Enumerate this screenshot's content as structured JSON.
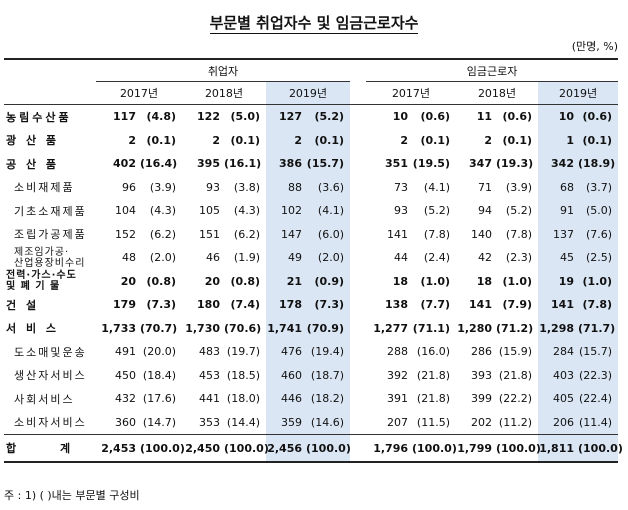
{
  "title": "부문별 취업자수 및 임금근로자수",
  "unit": "(만명, %)",
  "groups": {
    "employed": "취업자",
    "wage": "임금근로자"
  },
  "years": [
    "2017년",
    "2018년",
    "2019년",
    "2017년",
    "2018년",
    "2019년"
  ],
  "rows": [
    {
      "label": "농림수산품",
      "sub": false,
      "bold": true,
      "vals": [
        "117",
        "(4.8)",
        "122",
        "(5.0)",
        "127",
        "(5.2)",
        "10",
        "(0.6)",
        "11",
        "(0.6)",
        "10",
        "(0.6)"
      ]
    },
    {
      "label": "광 산 품",
      "sub": false,
      "bold": true,
      "vals": [
        "2",
        "(0.1)",
        "2",
        "(0.1)",
        "2",
        "(0.1)",
        "2",
        "(0.1)",
        "2",
        "(0.1)",
        "1",
        "(0.1)"
      ]
    },
    {
      "label": "공 산 품",
      "sub": false,
      "bold": true,
      "vals": [
        "402",
        "(16.4)",
        "395",
        "(16.1)",
        "386",
        "(15.7)",
        "351",
        "(19.5)",
        "347",
        "(19.3)",
        "342",
        "(18.9)"
      ]
    },
    {
      "label": "소비재제품",
      "sub": true,
      "bold": false,
      "vals": [
        "96",
        "(3.9)",
        "93",
        "(3.8)",
        "88",
        "(3.6)",
        "73",
        "(4.1)",
        "71",
        "(3.9)",
        "68",
        "(3.7)"
      ]
    },
    {
      "label": "기초소재제품",
      "sub": true,
      "bold": false,
      "vals": [
        "104",
        "(4.3)",
        "105",
        "(4.3)",
        "102",
        "(4.1)",
        "93",
        "(5.2)",
        "94",
        "(5.2)",
        "91",
        "(5.0)"
      ]
    },
    {
      "label": "조립가공제품",
      "sub": true,
      "bold": false,
      "vals": [
        "152",
        "(6.2)",
        "151",
        "(6.2)",
        "147",
        "(6.0)",
        "141",
        "(7.8)",
        "140",
        "(7.8)",
        "137",
        "(7.6)"
      ]
    },
    {
      "label": "제조임가공·산업용장비수리",
      "sub": true,
      "bold": false,
      "two": true,
      "l1": "제조임가공·",
      "l2": "산업용장비수리",
      "vals": [
        "48",
        "(2.0)",
        "46",
        "(1.9)",
        "49",
        "(2.0)",
        "44",
        "(2.4)",
        "42",
        "(2.3)",
        "45",
        "(2.5)"
      ]
    },
    {
      "label": "전력·가스·수도및폐기물",
      "sub": false,
      "bold": true,
      "two": true,
      "l1": "전력·가스·수도",
      "l2": "및 폐 기 물",
      "vals": [
        "20",
        "(0.8)",
        "20",
        "(0.8)",
        "21",
        "(0.9)",
        "18",
        "(1.0)",
        "18",
        "(1.0)",
        "19",
        "(1.0)"
      ]
    },
    {
      "label": "건 설",
      "sub": false,
      "bold": true,
      "vals": [
        "179",
        "(7.3)",
        "180",
        "(7.4)",
        "178",
        "(7.3)",
        "138",
        "(7.7)",
        "141",
        "(7.9)",
        "141",
        "(7.8)"
      ]
    },
    {
      "label": "서 비 스",
      "sub": false,
      "bold": true,
      "vals": [
        "1,733",
        "(70.7)",
        "1,730",
        "(70.6)",
        "1,741",
        "(70.9)",
        "1,277",
        "(71.1)",
        "1,280",
        "(71.2)",
        "1,298",
        "(71.7)"
      ]
    },
    {
      "label": "도소매및운송",
      "sub": true,
      "bold": false,
      "vals": [
        "491",
        "(20.0)",
        "483",
        "(19.7)",
        "476",
        "(19.4)",
        "288",
        "(16.0)",
        "286",
        "(15.9)",
        "284",
        "(15.7)"
      ]
    },
    {
      "label": "생산자서비스",
      "sub": true,
      "bold": false,
      "vals": [
        "450",
        "(18.4)",
        "453",
        "(18.5)",
        "460",
        "(18.7)",
        "392",
        "(21.8)",
        "393",
        "(21.8)",
        "403",
        "(22.3)"
      ]
    },
    {
      "label": "사회서비스",
      "sub": true,
      "bold": false,
      "vals": [
        "432",
        "(17.6)",
        "441",
        "(18.0)",
        "446",
        "(18.2)",
        "391",
        "(21.8)",
        "399",
        "(22.2)",
        "405",
        "(22.4)"
      ]
    },
    {
      "label": "소비자서비스",
      "sub": true,
      "bold": false,
      "vals": [
        "360",
        "(14.7)",
        "353",
        "(14.4)",
        "359",
        "(14.6)",
        "207",
        "(11.5)",
        "202",
        "(11.2)",
        "206",
        "(11.4)"
      ]
    }
  ],
  "total": {
    "label": "합 계",
    "vals": [
      "2,453",
      "(100.0)",
      "2,450",
      "(100.0)",
      "2,456",
      "(100.0)",
      "1,796",
      "(100.0)",
      "1,799",
      "(100.0)",
      "1,811",
      "(100.0)"
    ]
  },
  "note": "주 : 1) (    )내는 부문별 구성비"
}
